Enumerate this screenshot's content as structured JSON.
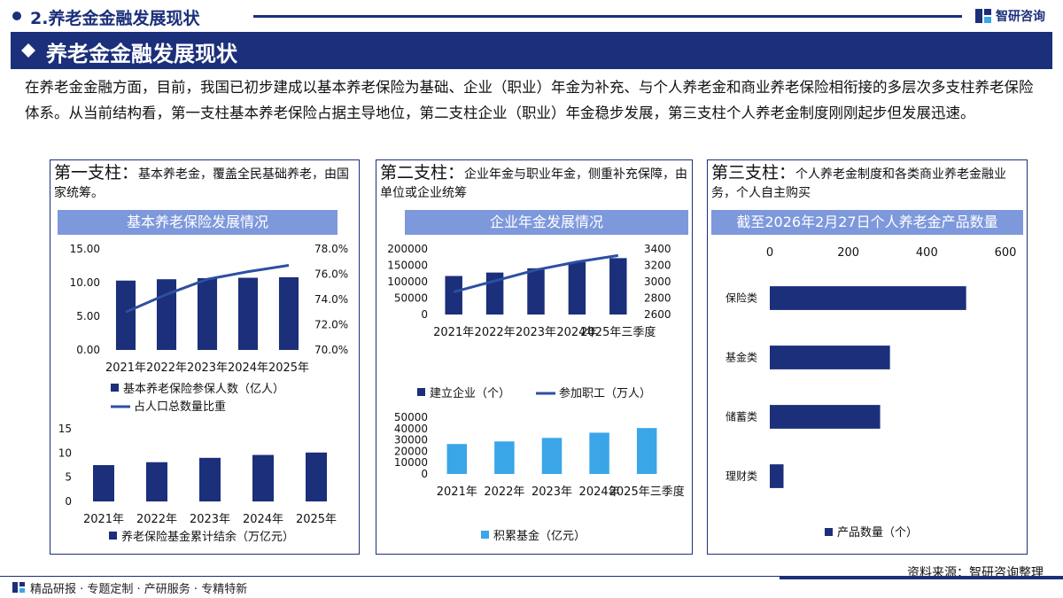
{
  "header": {
    "crumb": "2.养老金金融发展现状",
    "logo_text": "智研咨询",
    "banner_title": "养老金金融发展现状"
  },
  "intro": "在养老金金融方面，目前，我国已初步建成以基本养老保险为基础、企业（职业）年金为补充、与个人养老金和商业养老保险相衔接的多层次多支柱养老保险体系。从当前结构看，第一支柱基本养老保险占据主导地位，第二支柱企业（职业）年金稳步发展，第三支柱个人养老金制度刚刚起步但发展迅速。",
  "pillars": [
    {
      "lead": "第一支柱：",
      "desc": "基本养老金，覆盖全民基础养老，由国家统筹。",
      "chart_title": "基本养老保险发展情况"
    },
    {
      "lead": "第二支柱：",
      "desc": "企业年金与职业年金，侧重补充保障，由单位或企业统筹",
      "chart_title": "企业年金发展情况"
    },
    {
      "lead": "第三支柱：",
      "desc": "个人养老金制度和各类商业养老金融业务，个人自主购买",
      "chart_title": "截至2026年2月27日个人养老金产品数量"
    }
  ],
  "source": "资料来源：智研咨询整理",
  "footer": "精品研报 · 专题定制 · 产研服务 · 专精特新",
  "colors": {
    "navy": "#1b2f7a",
    "bar": "#1b2f7a",
    "light_bar": "#3aa6e8",
    "line": "#2e4fa1",
    "title_bg": "#7e98dc"
  },
  "chart_data": [
    {
      "type": "bar",
      "categories": [
        "2021年",
        "2022年",
        "2023年",
        "2024年",
        "2025年"
      ],
      "series": [
        {
          "name": "基本养老保险参保人数（亿人）",
          "values": [
            10.3,
            10.5,
            10.66,
            10.72,
            10.8
          ],
          "axis": "left"
        },
        {
          "name": "占人口总数量比重",
          "type": "line",
          "values": [
            73.0,
            74.4,
            75.6,
            76.2,
            76.7
          ],
          "axis": "right"
        }
      ],
      "ylim": [
        0,
        15
      ],
      "yticks": [
        "0.00",
        "5.00",
        "10.00",
        "15.00"
      ],
      "y2lim": [
        70,
        78
      ],
      "y2ticks": [
        "70.0%",
        "72.0%",
        "74.0%",
        "76.0%",
        "78.0%"
      ],
      "legend": "bottom"
    },
    {
      "type": "bar",
      "categories": [
        "2021年",
        "2022年",
        "2023年",
        "2024年",
        "2025年"
      ],
      "series": [
        {
          "name": "养老保险基金累计结余（万亿元）",
          "values": [
            7.5,
            8.1,
            9.0,
            9.6,
            10.1
          ]
        }
      ],
      "ylim": [
        0,
        15
      ],
      "yticks": [
        "0",
        "5",
        "10",
        "15"
      ],
      "legend": "bottom"
    },
    {
      "type": "bar",
      "categories": [
        "2021年",
        "2022年",
        "2023年",
        "2024年",
        "2025年三季度"
      ],
      "series": [
        {
          "name": "建立企业（个）",
          "values": [
            117500,
            128000,
            141000,
            160000,
            172000
          ],
          "axis": "left"
        },
        {
          "name": "参加职工（万人）",
          "type": "line",
          "values": [
            2875,
            3010,
            3144,
            3242,
            3320
          ],
          "axis": "right"
        }
      ],
      "ylim": [
        0,
        200000
      ],
      "yticks": [
        "0",
        "50000",
        "100000",
        "150000",
        "200000"
      ],
      "y2lim": [
        2600,
        3400
      ],
      "y2ticks": [
        "2600",
        "2800",
        "3000",
        "3200",
        "3400"
      ],
      "legend": "bottom"
    },
    {
      "type": "bar",
      "categories": [
        "2021年",
        "2022年",
        "2023年",
        "2024年",
        "2025年三季度"
      ],
      "series": [
        {
          "name": "积累基金（亿元）",
          "values": [
            26400,
            28700,
            31800,
            36400,
            40500
          ]
        }
      ],
      "ylim": [
        0,
        50000
      ],
      "yticks": [
        "0",
        "10000",
        "20000",
        "30000",
        "40000",
        "50000"
      ],
      "legend": "bottom"
    },
    {
      "type": "bar",
      "orientation": "horizontal",
      "categories": [
        "保险类",
        "基金类",
        "储蓄类",
        "理财类"
      ],
      "series": [
        {
          "name": "产品数量（个）",
          "values": [
            500,
            306,
            281,
            35
          ]
        }
      ],
      "xlim": [
        0,
        600
      ],
      "xticks": [
        "0",
        "200",
        "400",
        "600"
      ],
      "legend": "bottom"
    }
  ]
}
